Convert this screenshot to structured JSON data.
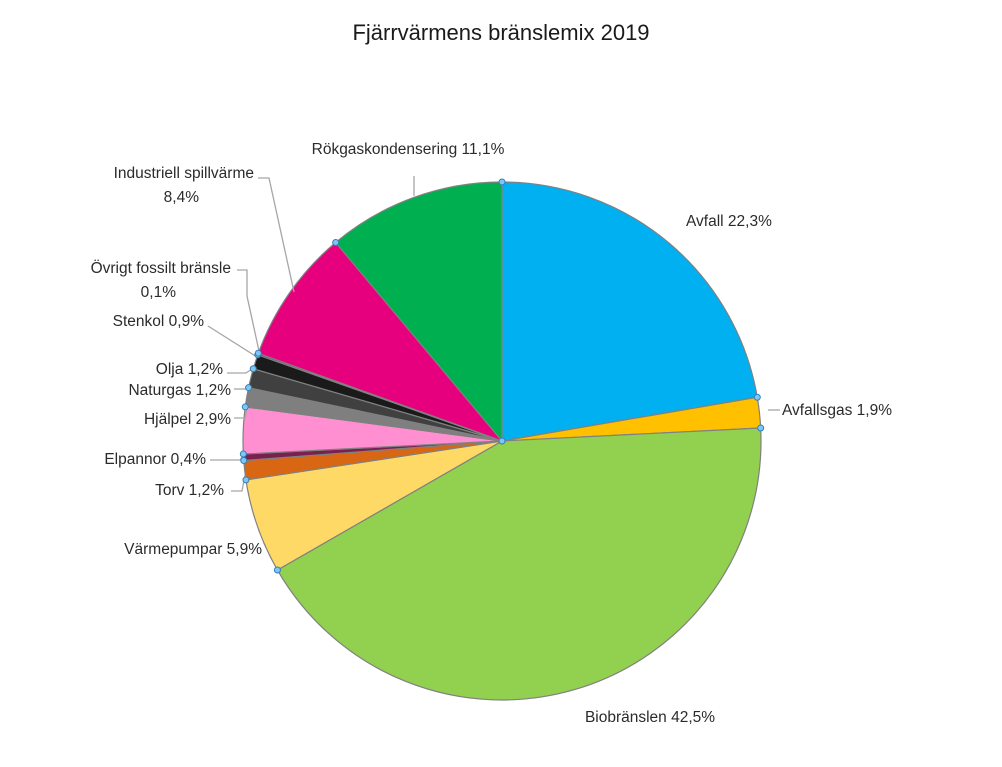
{
  "chart_data": {
    "type": "pie",
    "title": "Fjärrvärmens bränslemix 2019",
    "slices": [
      {
        "name": "Avfall",
        "value": 22.3,
        "label": "Avfall 22,3%",
        "color": "#00B0F0"
      },
      {
        "name": "Avfallsgas",
        "value": 1.9,
        "label": "Avfallsgas 1,9%",
        "color": "#FFC000"
      },
      {
        "name": "Biobränslen",
        "value": 42.5,
        "label": "Biobränslen 42,5%",
        "color": "#92D050"
      },
      {
        "name": "Värmepumpar",
        "value": 5.9,
        "label": "Värmepumpar 5,9%",
        "color": "#FFD966"
      },
      {
        "name": "Torv",
        "value": 1.2,
        "label": "Torv 1,2%",
        "color": "#D86613"
      },
      {
        "name": "Elpannor",
        "value": 0.4,
        "label": "Elpannor 0,4%",
        "color": "#7B1E50"
      },
      {
        "name": "Hjälpel",
        "value": 2.9,
        "label": "Hjälpel 2,9%",
        "color": "#FF8FD0"
      },
      {
        "name": "Naturgas",
        "value": 1.2,
        "label": "Naturgas 1,2%",
        "color": "#7F7F7F"
      },
      {
        "name": "Olja",
        "value": 1.2,
        "label": "Olja 1,2%",
        "color": "#404040"
      },
      {
        "name": "Stenkol",
        "value": 0.9,
        "label": "Stenkol 0,9%",
        "color": "#1A1A1A"
      },
      {
        "name": "Övrigt fossilt bränsle",
        "value": 0.1,
        "label": [
          "Övrigt fossilt bränsle",
          "0,1%"
        ],
        "color": "#5A2A82"
      },
      {
        "name": "Industriell spillvärme",
        "value": 8.4,
        "label": [
          "Industriell spillvärme",
          "8,4%"
        ],
        "color": "#E6007E"
      },
      {
        "name": "Rökgaskondensering",
        "value": 11.1,
        "label": "Rökgaskondensering 11,1%",
        "color": "#00B050"
      }
    ],
    "start": "12 o'clock",
    "direction": "clockwise",
    "legend": "none",
    "data_labels": "outside with leader lines"
  }
}
